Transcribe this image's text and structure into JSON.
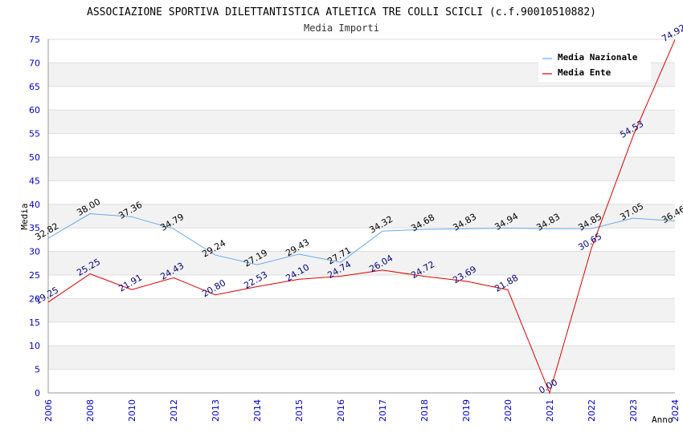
{
  "chart_data": {
    "type": "line",
    "title": "ASSOCIAZIONE SPORTIVA DILETTANTISTICA ATLETICA TRE COLLI SCICLI (c.f.90010510882)",
    "subtitle": "Media Importi",
    "xlabel": "Anno",
    "ylabel": "Media",
    "ylim": [
      0,
      75
    ],
    "yticks": [
      "0",
      "5",
      "10",
      "15",
      "20",
      "25",
      "30",
      "35",
      "40",
      "45",
      "50",
      "55",
      "60",
      "65",
      "70",
      "75"
    ],
    "categories": [
      "2006",
      "2008",
      "2010",
      "2012",
      "2013",
      "2014",
      "2015",
      "2016",
      "2017",
      "2018",
      "2019",
      "2020",
      "2021",
      "2022",
      "2023",
      "2024"
    ],
    "series": [
      {
        "name": "Media Nazionale",
        "color": "#66aaee",
        "values": [
          32.82,
          38.0,
          37.36,
          34.79,
          29.24,
          27.19,
          29.43,
          27.71,
          34.32,
          34.68,
          34.83,
          34.94,
          34.83,
          34.85,
          37.05,
          36.46
        ],
        "labels": [
          "32.82",
          "38.00",
          "37.36",
          "34.79",
          "29.24",
          "27.19",
          "29.43",
          "27.71",
          "34.32",
          "34.68",
          "34.83",
          "34.94",
          "34.83",
          "34.85",
          "37.05",
          "36.46"
        ]
      },
      {
        "name": "Media Ente",
        "color": "#dd0000",
        "values": [
          19.25,
          25.25,
          21.91,
          24.43,
          20.8,
          22.53,
          24.1,
          24.74,
          26.04,
          24.72,
          23.69,
          21.88,
          0.0,
          30.65,
          54.53,
          74.92
        ],
        "labels": [
          "19.25",
          "25.25",
          "21.91",
          "24.43",
          "20.80",
          "22.53",
          "24.10",
          "24.74",
          "26.04",
          "24.72",
          "23.69",
          "21.88",
          "0.00",
          "30.65",
          "54.53",
          "74.92"
        ]
      }
    ],
    "grid": true,
    "legend_position": "top-right"
  }
}
